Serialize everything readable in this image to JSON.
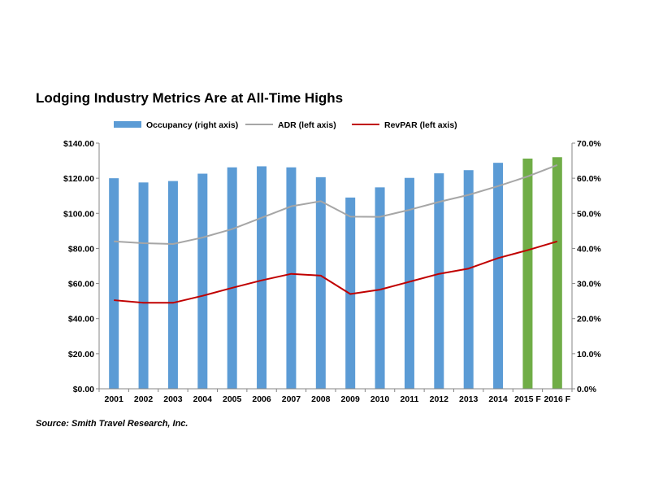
{
  "chart_data": {
    "type": "bar",
    "title": "Lodging Industry Metrics Are at All-Time Highs",
    "source": "Source: Smith Travel Research, Inc.",
    "categories": [
      "2001",
      "2002",
      "2003",
      "2004",
      "2005",
      "2006",
      "2007",
      "2008",
      "2009",
      "2010",
      "2011",
      "2012",
      "2013",
      "2014",
      "2015 F",
      "2016 F"
    ],
    "left_axis": {
      "min": 0,
      "max": 140,
      "step": 20,
      "ticks": [
        "$0.00",
        "$20.00",
        "$40.00",
        "$60.00",
        "$80.00",
        "$100.00",
        "$120.00",
        "$140.00"
      ]
    },
    "right_axis": {
      "min": 0,
      "max": 70,
      "step": 10,
      "ticks": [
        "0.0%",
        "10.0%",
        "20.0%",
        "30.0%",
        "40.0%",
        "50.0%",
        "60.0%",
        "70.0%"
      ]
    },
    "legend": [
      {
        "name": "Occupancy (right axis)",
        "kind": "bar",
        "color": "#5B9BD5"
      },
      {
        "name": "ADR (left axis)",
        "kind": "line",
        "color": "#A6A6A6"
      },
      {
        "name": "RevPAR (left axis)",
        "kind": "line",
        "color": "#C00000"
      }
    ],
    "series": [
      {
        "name": "Occupancy (right axis)",
        "type": "bar",
        "axis": "right",
        "color": "#5B9BD5",
        "forecast_color": "#70AD47",
        "forecast_from_index": 14,
        "values": [
          60.0,
          58.8,
          59.2,
          61.3,
          63.1,
          63.4,
          63.1,
          60.3,
          54.5,
          57.4,
          60.1,
          61.4,
          62.3,
          64.4,
          65.6,
          66.0
        ]
      },
      {
        "name": "ADR (left axis)",
        "type": "line",
        "axis": "left",
        "color": "#A6A6A6",
        "values": [
          84.0,
          83.0,
          82.5,
          86.2,
          91.0,
          97.5,
          104.0,
          106.9,
          98.1,
          98.0,
          102.0,
          106.5,
          110.5,
          115.5,
          121.0,
          127.5
        ]
      },
      {
        "name": "RevPAR (left axis)",
        "type": "line",
        "axis": "left",
        "color": "#C00000",
        "values": [
          50.5,
          49.0,
          49.0,
          53.0,
          57.5,
          61.8,
          65.5,
          64.5,
          54.0,
          56.5,
          61.0,
          65.5,
          68.5,
          74.5,
          79.0,
          84.0
        ]
      }
    ]
  }
}
